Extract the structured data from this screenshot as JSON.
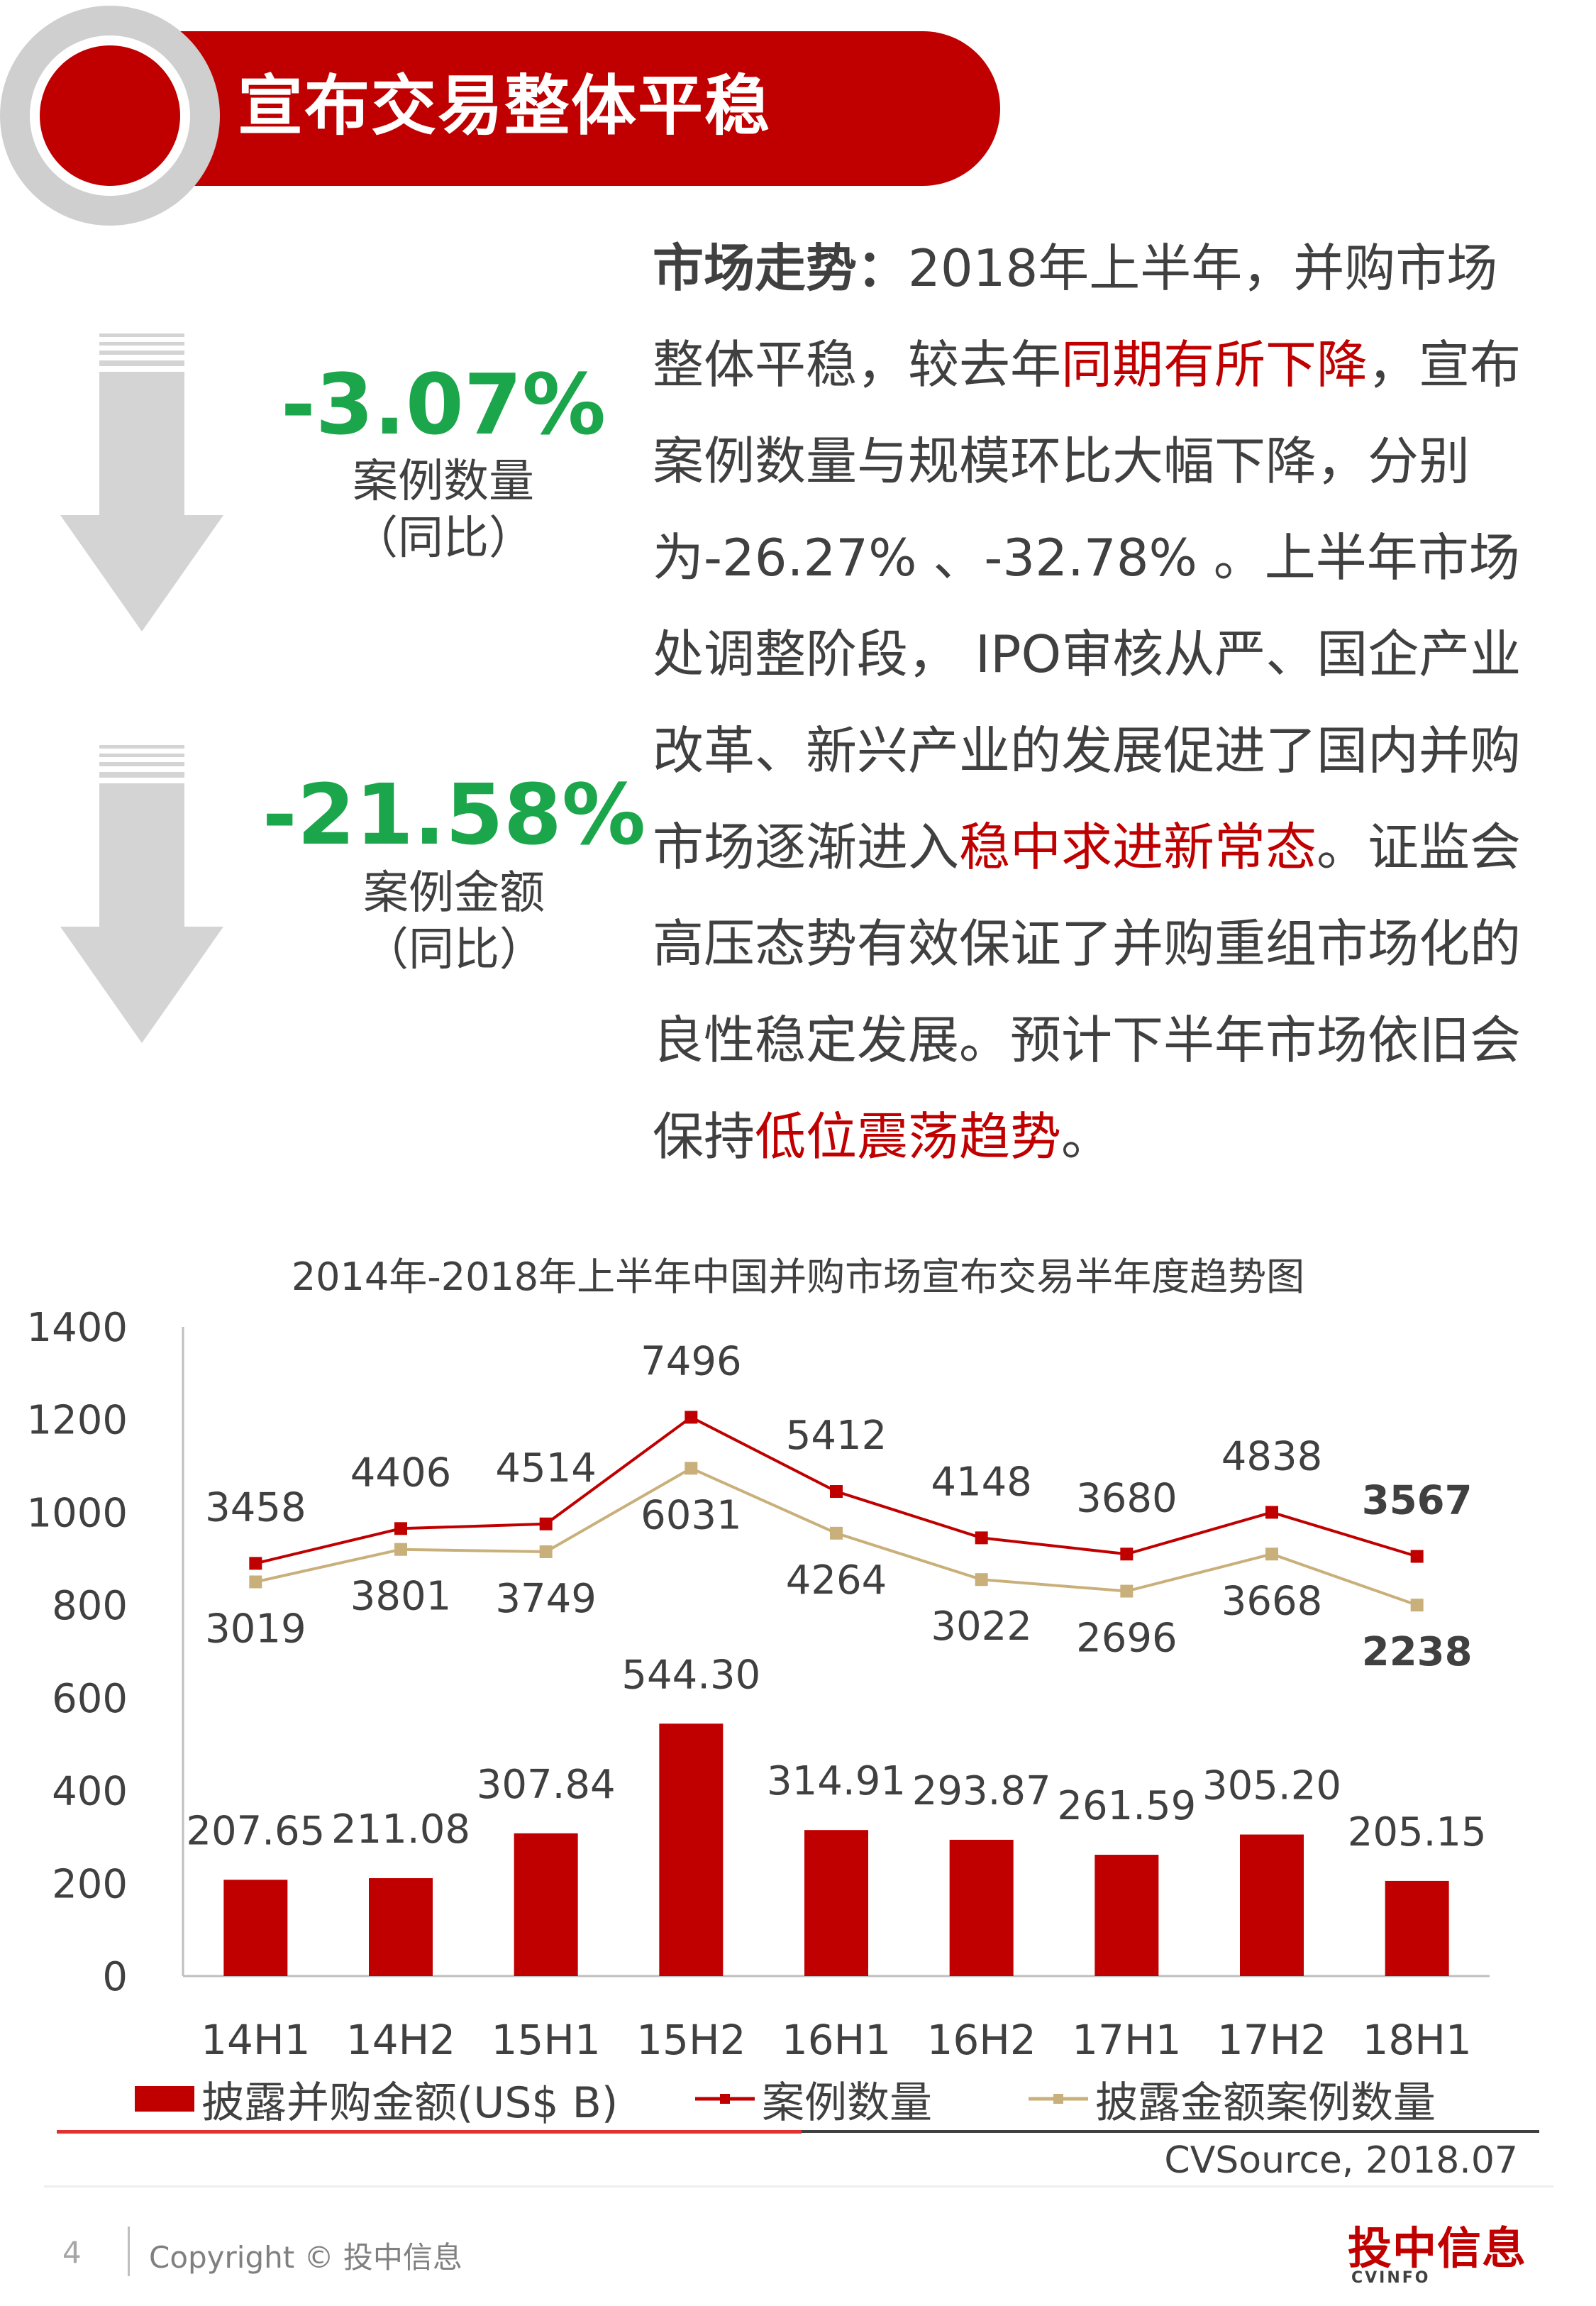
{
  "header": {
    "title": "宣布交易整体平稳"
  },
  "stats": [
    {
      "value": "-3.07%",
      "label": "案例数量",
      "note": "（同比）"
    },
    {
      "value": "-21.58%",
      "label": "案例金额",
      "note": "（同比）"
    }
  ],
  "description": {
    "segments": [
      {
        "text": "市场走势：",
        "style": "strong"
      },
      {
        "text": "2018年上半年，并购市场整体平稳，较去年",
        "style": "normal"
      },
      {
        "text": "同期有所下降",
        "style": "red"
      },
      {
        "text": "，宣布案例数量与规模环比大幅下降，分别为-26.27% 、-32.78% 。上半年市场处调整阶段， IPO审核从严、国企产业改革、新兴产业的发展促进了国内并购市场逐渐进入",
        "style": "normal"
      },
      {
        "text": "稳中求进新常态",
        "style": "red"
      },
      {
        "text": "。证监会高压态势有效保证了并购重组市场化的良性稳定发展。预计下半年市场依旧会保持",
        "style": "normal"
      },
      {
        "text": "低位震荡趋势",
        "style": "red"
      },
      {
        "text": "。",
        "style": "normal"
      }
    ]
  },
  "chart_data": {
    "type": "bar",
    "title": "2014年-2018年上半年中国并购市场宣布交易半年度趋势图",
    "categories": [
      "14H1",
      "14H2",
      "15H1",
      "15H2",
      "16H1",
      "16H2",
      "17H1",
      "17H2",
      "18H1"
    ],
    "ylim": [
      0,
      1400
    ],
    "yticks": [
      0,
      200,
      400,
      600,
      800,
      1000,
      1200,
      1400
    ],
    "series": [
      {
        "name": "披露并购金额(US$ B)",
        "kind": "bar",
        "color": "#c00000",
        "values": [
          207.65,
          211.08,
          307.84,
          544.3,
          314.91,
          293.87,
          261.59,
          305.2,
          205.15
        ],
        "labels": [
          "207.65",
          "211.08",
          "307.84",
          "544.30",
          "314.91",
          "293.87",
          "261.59",
          "305.20",
          "205.15"
        ]
      },
      {
        "name": "案例数量",
        "kind": "line",
        "color": "#c00000",
        "values": [
          3458,
          4406,
          4514,
          7496,
          5412,
          4148,
          3680,
          4838,
          3567
        ],
        "plot_values": [
          890,
          965,
          975,
          1205,
          1045,
          945,
          910,
          1000,
          905
        ]
      },
      {
        "name": "披露金额案例数量",
        "kind": "line",
        "color": "#c9b07a",
        "values": [
          3019,
          3801,
          3749,
          6031,
          4264,
          3022,
          2696,
          3668,
          2238
        ],
        "plot_values": [
          850,
          920,
          915,
          1095,
          955,
          855,
          830,
          910,
          800
        ]
      }
    ],
    "legend_position": "bottom",
    "grid": false
  },
  "source": "CVSource, 2018.07",
  "footer": {
    "page": "4",
    "copyright": "Copyright © 投中信息",
    "brand": "投中信息",
    "brand_sub": "CVINFO"
  }
}
